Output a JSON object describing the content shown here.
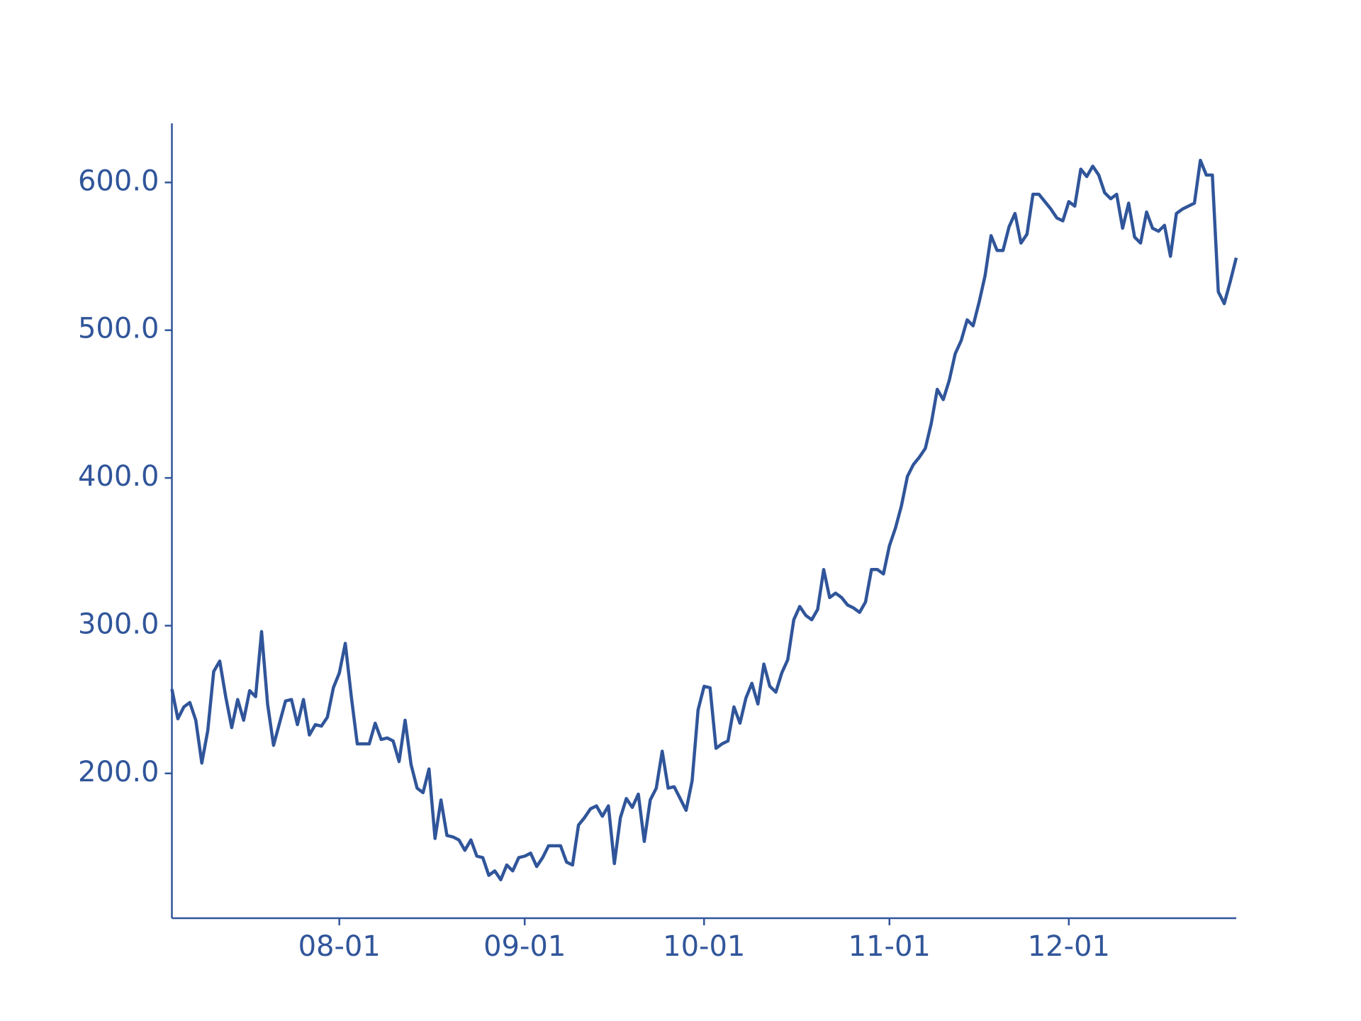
{
  "chart_data": {
    "type": "line",
    "color": "#30559a",
    "x": [
      "07-04",
      "07-05",
      "07-06",
      "07-07",
      "07-08",
      "07-09",
      "07-10",
      "07-11",
      "07-12",
      "07-13",
      "07-14",
      "07-15",
      "07-16",
      "07-17",
      "07-18",
      "07-19",
      "07-20",
      "07-21",
      "07-22",
      "07-23",
      "07-24",
      "07-25",
      "07-26",
      "07-27",
      "07-28",
      "07-29",
      "07-30",
      "07-31",
      "08-01",
      "08-02",
      "08-03",
      "08-04",
      "08-05",
      "08-06",
      "08-07",
      "08-08",
      "08-09",
      "08-10",
      "08-11",
      "08-12",
      "08-13",
      "08-14",
      "08-15",
      "08-16",
      "08-17",
      "08-18",
      "08-19",
      "08-20",
      "08-21",
      "08-22",
      "08-23",
      "08-24",
      "08-25",
      "08-26",
      "08-27",
      "08-28",
      "08-29",
      "08-30",
      "08-31",
      "09-01",
      "09-02",
      "09-03",
      "09-04",
      "09-05",
      "09-06",
      "09-07",
      "09-08",
      "09-09",
      "09-10",
      "09-11",
      "09-12",
      "09-13",
      "09-14",
      "09-15",
      "09-16",
      "09-17",
      "09-18",
      "09-19",
      "09-20",
      "09-21",
      "09-22",
      "09-23",
      "09-24",
      "09-25",
      "09-26",
      "09-27",
      "09-28",
      "09-29",
      "09-30",
      "10-01",
      "10-02",
      "10-03",
      "10-04",
      "10-05",
      "10-06",
      "10-07",
      "10-08",
      "10-09",
      "10-10",
      "10-11",
      "10-12",
      "10-13",
      "10-14",
      "10-15",
      "10-16",
      "10-17",
      "10-18",
      "10-19",
      "10-20",
      "10-21",
      "10-22",
      "10-23",
      "10-24",
      "10-25",
      "10-26",
      "10-27",
      "10-28",
      "10-29",
      "10-30",
      "10-31",
      "11-01",
      "11-02",
      "11-03",
      "11-04",
      "11-05",
      "11-06",
      "11-07",
      "11-08",
      "11-09",
      "11-10",
      "11-11",
      "11-12",
      "11-13",
      "11-14",
      "11-15",
      "11-16",
      "11-17",
      "11-18",
      "11-19",
      "11-20",
      "11-21",
      "11-22",
      "11-23",
      "11-24",
      "11-25",
      "11-26",
      "11-27",
      "11-28",
      "11-29",
      "11-30",
      "12-01",
      "12-02",
      "12-03",
      "12-04",
      "12-05",
      "12-06",
      "12-07",
      "12-08",
      "12-09",
      "12-10",
      "12-11",
      "12-12",
      "12-13",
      "12-14",
      "12-15",
      "12-16",
      "12-17",
      "12-18",
      "12-19",
      "12-20",
      "12-21",
      "12-22",
      "12-23",
      "12-24",
      "12-25",
      "12-26",
      "12-27",
      "12-28",
      "12-29"
    ],
    "values": [
      257,
      237,
      245,
      248,
      236,
      207,
      229,
      269,
      276,
      252,
      231,
      250,
      236,
      256,
      252,
      296,
      247,
      219,
      234,
      249,
      250,
      233,
      250,
      226,
      233,
      232,
      238,
      258,
      268,
      288,
      252,
      220,
      220,
      220,
      234,
      223,
      224,
      222,
      208,
      236,
      206,
      190,
      187,
      203,
      156,
      182,
      158,
      157,
      155,
      148,
      155,
      144,
      143,
      131,
      134,
      128,
      138,
      134,
      143,
      144,
      146,
      137,
      143,
      151,
      151,
      151,
      140,
      138,
      165,
      170,
      176,
      178,
      171,
      178,
      139,
      170,
      183,
      177,
      186,
      154,
      182,
      190,
      215,
      190,
      191,
      183,
      175,
      195,
      243,
      259,
      258,
      217,
      220,
      222,
      245,
      234,
      251,
      261,
      247,
      274,
      259,
      255,
      268,
      277,
      304,
      313,
      307,
      304,
      311,
      338,
      319,
      322,
      319,
      314,
      312,
      309,
      316,
      338,
      338,
      335,
      354,
      366,
      381,
      401,
      409,
      414,
      420,
      437,
      460,
      453,
      466,
      484,
      493,
      507,
      503,
      519,
      537,
      564,
      554,
      554,
      570,
      579,
      559,
      565,
      592,
      592,
      587,
      582,
      576,
      574,
      587,
      584,
      609,
      604,
      611,
      605,
      593,
      589,
      592,
      569,
      586,
      563,
      559,
      580,
      569,
      567,
      571,
      550,
      579,
      582,
      584,
      586,
      615,
      605,
      605,
      526,
      518,
      533,
      549
    ],
    "xlim": [
      "07-04",
      "12-29"
    ],
    "xticks": [
      "08-01",
      "09-01",
      "10-01",
      "11-01",
      "12-01"
    ],
    "ylim": [
      102,
      640
    ],
    "yticks": [
      {
        "value": 200,
        "label": "200.0"
      },
      {
        "value": 300,
        "label": "300.0"
      },
      {
        "value": 400,
        "label": "400.0"
      },
      {
        "value": 500,
        "label": "500.0"
      },
      {
        "value": 600,
        "label": "600.0"
      }
    ]
  }
}
